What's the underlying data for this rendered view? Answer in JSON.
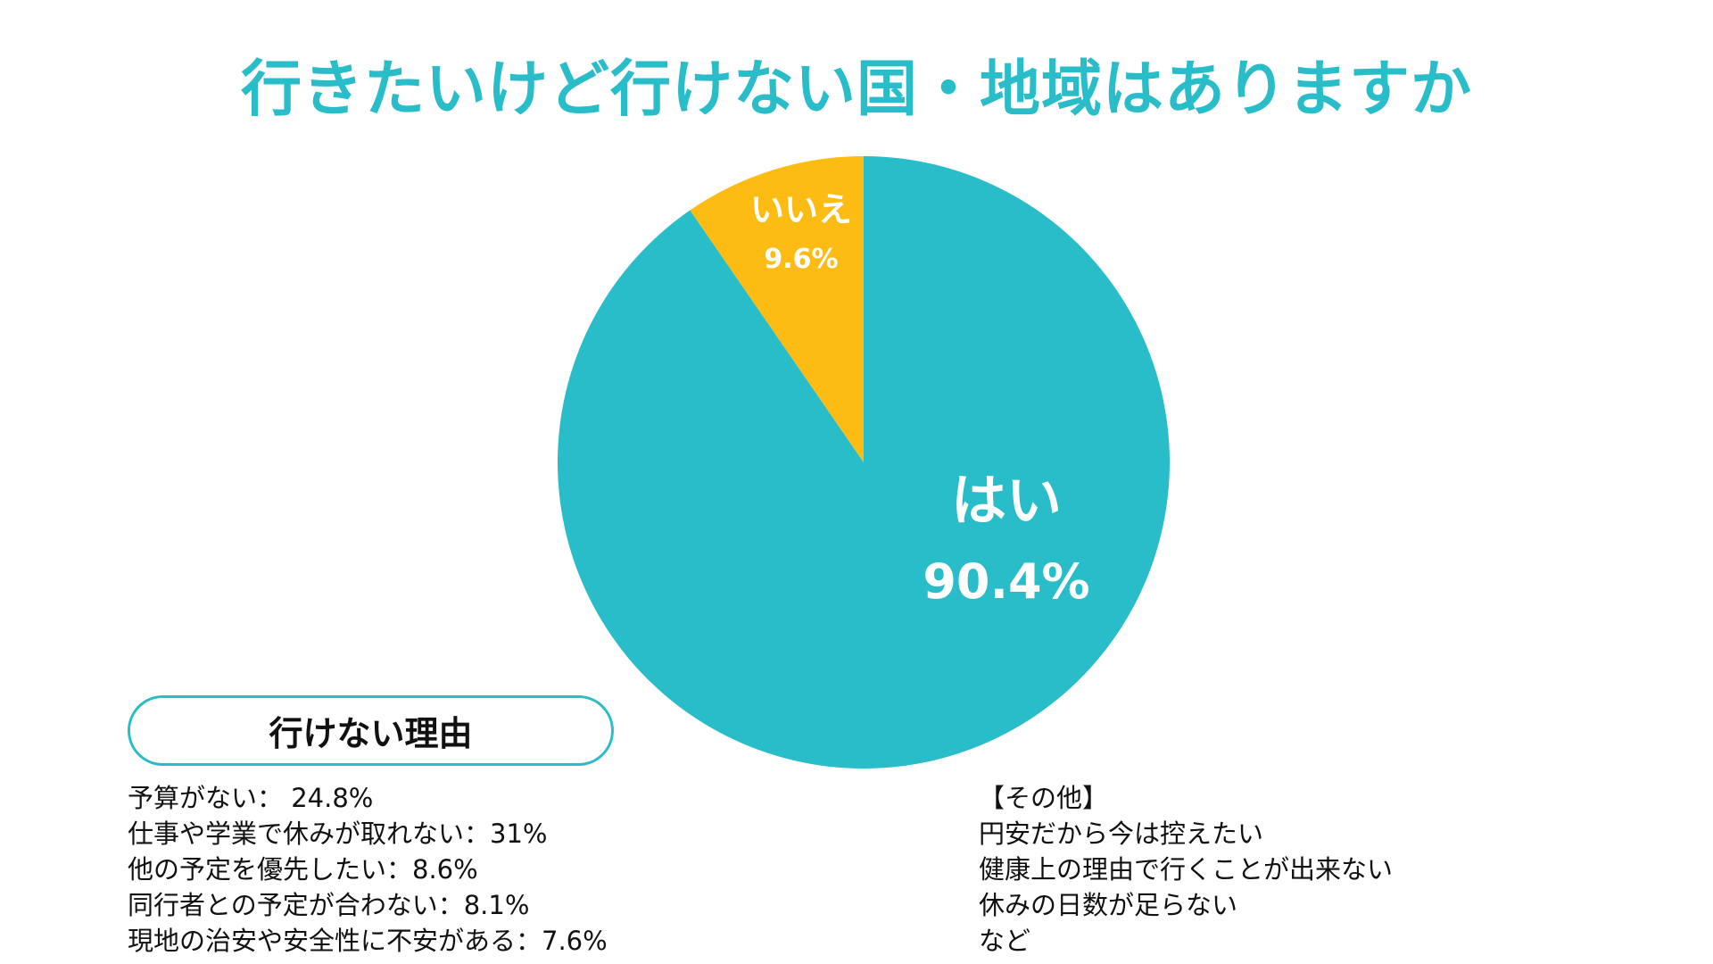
{
  "title": "行きたいけど行けない国・地域はありますか",
  "colors": {
    "accent": "#29bcc9",
    "yes": "#29bcc9",
    "no": "#fdbc13",
    "text": "#111111"
  },
  "chart_data": {
    "type": "pie",
    "title": "行きたいけど行けない国・地域はありますか",
    "slices": [
      {
        "label": "はい",
        "value": 90.4,
        "value_label": "90.4%",
        "color": "#29bcc9"
      },
      {
        "label": "いいえ",
        "value": 9.6,
        "value_label": "9.6%",
        "color": "#fdbc13"
      }
    ]
  },
  "reasons": {
    "header": "行けない理由",
    "items": [
      "予算がない： 24.8%",
      "仕事や学業で休みが取れない：31%",
      "他の予定を優先したい：8.6%",
      "同行者との予定が合わない：8.1%",
      "現地の治安や安全性に不安がある：7.6%"
    ]
  },
  "other": {
    "items": [
      "【その他】",
      "円安だから今は控えたい",
      "健康上の理由で行くことが出来ない",
      "休みの日数が足らない",
      "など"
    ]
  }
}
